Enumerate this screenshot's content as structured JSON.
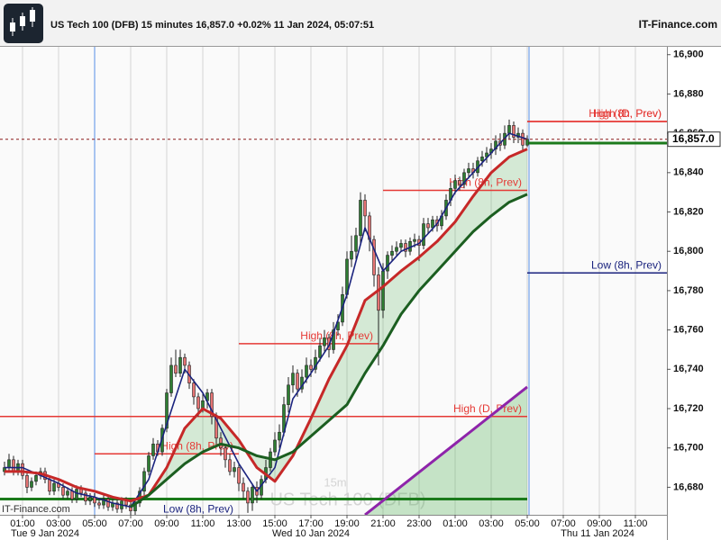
{
  "chart_data": {
    "type": "candlestick",
    "title": "US Tech 100 (DFB)",
    "subtitle": "15 minutes",
    "change": "+0.02%",
    "timestamp": "11 Jan 2024, 05:07:51",
    "brand": "IT-Finance.com",
    "watermark_period": "15m",
    "current_price": {
      "value": 16857,
      "label": "16,857.0"
    },
    "xlim": [
      -1,
      147
    ],
    "ylim": [
      16666,
      16904
    ],
    "yticks": [
      {
        "value": 16680,
        "label": "16,680"
      },
      {
        "value": 16700,
        "label": "16,700"
      },
      {
        "value": 16720,
        "label": "16,720"
      },
      {
        "value": 16740,
        "label": "16,740"
      },
      {
        "value": 16760,
        "label": "16,760"
      },
      {
        "value": 16780,
        "label": "16,780"
      },
      {
        "value": 16800,
        "label": "16,800"
      },
      {
        "value": 16820,
        "label": "16,820"
      },
      {
        "value": 16840,
        "label": "16,840"
      },
      {
        "value": 16860,
        "label": "16,860"
      },
      {
        "value": 16880,
        "label": "16,880"
      },
      {
        "value": 16900,
        "label": "16,900"
      }
    ],
    "xticks": [
      {
        "value": 4,
        "label": "01:00"
      },
      {
        "value": 12,
        "label": "03:00"
      },
      {
        "value": 20,
        "label": "05:00"
      },
      {
        "value": 28,
        "label": "07:00"
      },
      {
        "value": 36,
        "label": "09:00"
      },
      {
        "value": 44,
        "label": "11:00"
      },
      {
        "value": 52,
        "label": "13:00"
      },
      {
        "value": 60,
        "label": "15:00"
      },
      {
        "value": 68,
        "label": "17:00"
      },
      {
        "value": 76,
        "label": "19:00"
      },
      {
        "value": 84,
        "label": "21:00"
      },
      {
        "value": 92,
        "label": "23:00"
      },
      {
        "value": 100,
        "label": "01:00"
      },
      {
        "value": 108,
        "label": "03:00"
      },
      {
        "value": 116,
        "label": "05:00"
      },
      {
        "value": 124,
        "label": "07:00"
      },
      {
        "value": 132,
        "label": "09:00"
      },
      {
        "value": 140,
        "label": "11:00"
      }
    ],
    "date_labels": [
      "Tue 9 Jan 2024",
      "Wed 10 Jan 2024",
      "Thu 11 Jan 2024"
    ],
    "grid": true,
    "up_color": "#2e7d32",
    "down_color": "#e57373",
    "candles": {
      "open": [
        16688,
        16690,
        16694,
        16688,
        16692,
        16686,
        16680,
        16683,
        16686,
        16688,
        16684,
        16678,
        16682,
        16680,
        16676,
        16678,
        16674,
        16679,
        16677,
        16673,
        16675,
        16672,
        16671,
        16674,
        16670,
        16672,
        16669,
        16673,
        16671,
        16668,
        16672,
        16678,
        16688,
        16696,
        16702,
        16698,
        16710,
        16728,
        16742,
        16738,
        16746,
        16742,
        16733,
        16726,
        16720,
        16724,
        16728,
        16716,
        16705,
        16700,
        16694,
        16688,
        16690,
        16682,
        16678,
        16672,
        16680,
        16676,
        16684,
        16690,
        16698,
        16704,
        16708,
        16722,
        16732,
        16738,
        16730,
        16736,
        16742,
        16740,
        16746,
        16752,
        16756,
        16750,
        16760,
        16764,
        16778,
        16796,
        16800,
        16808,
        16826,
        16818,
        16806,
        16788,
        16770,
        16790,
        16798,
        16800,
        16802,
        16804,
        16800,
        16805,
        16806,
        16803,
        16814,
        16812,
        16816,
        16813,
        16818,
        16826,
        16832,
        16836,
        16834,
        16840,
        16842,
        16840,
        16846,
        16848,
        16850,
        16852,
        16856,
        16854,
        16860,
        16864,
        16858,
        16860,
        16854
      ],
      "high": [
        16693,
        16697,
        16696,
        16694,
        16694,
        16688,
        16685,
        16688,
        16690,
        16690,
        16686,
        16684,
        16684,
        16682,
        16680,
        16680,
        16681,
        16681,
        16679,
        16677,
        16677,
        16674,
        16676,
        16676,
        16674,
        16674,
        16675,
        16675,
        16673,
        16674,
        16680,
        16690,
        16698,
        16705,
        16704,
        16712,
        16730,
        16746,
        16750,
        16750,
        16748,
        16744,
        16735,
        16728,
        16728,
        16730,
        16730,
        16718,
        16708,
        16702,
        16697,
        16693,
        16692,
        16685,
        16680,
        16682,
        16683,
        16686,
        16694,
        16700,
        16708,
        16712,
        16726,
        16736,
        16742,
        16740,
        16740,
        16746,
        16745,
        16750,
        16756,
        16760,
        16758,
        16764,
        16768,
        16782,
        16800,
        16808,
        16812,
        16830,
        16829,
        16820,
        16808,
        16792,
        16794,
        16800,
        16803,
        16805,
        16806,
        16806,
        16807,
        16809,
        16808,
        16817,
        16817,
        16818,
        16818,
        16821,
        16829,
        16835,
        16839,
        16838,
        16842,
        16845,
        16845,
        16848,
        16851,
        16853,
        16855,
        16859,
        16860,
        16864,
        16867,
        16866,
        16863,
        16862,
        16859
      ],
      "low": [
        16686,
        16688,
        16686,
        16686,
        16684,
        16677,
        16678,
        16681,
        16684,
        16682,
        16676,
        16676,
        16678,
        16674,
        16674,
        16672,
        16672,
        16675,
        16671,
        16671,
        16670,
        16669,
        16669,
        16668,
        16668,
        16667,
        16667,
        16669,
        16666,
        16666,
        16670,
        16676,
        16686,
        16694,
        16696,
        16696,
        16708,
        16726,
        16736,
        16736,
        16738,
        16730,
        16722,
        16716,
        16718,
        16720,
        16712,
        16702,
        16696,
        16690,
        16686,
        16685,
        16678,
        16674,
        16667,
        16668,
        16672,
        16674,
        16682,
        16688,
        16696,
        16700,
        16706,
        16718,
        16728,
        16726,
        16728,
        16733,
        16736,
        16738,
        16744,
        16749,
        16746,
        16748,
        16757,
        16762,
        16776,
        16792,
        16796,
        16804,
        16810,
        16800,
        16782,
        16742,
        16766,
        16786,
        16795,
        16798,
        16800,
        16797,
        16798,
        16802,
        16795,
        16801,
        16809,
        16810,
        16810,
        16811,
        16816,
        16823,
        16829,
        16831,
        16832,
        16837,
        16837,
        16838,
        16843,
        16845,
        16847,
        16849,
        16851,
        16852,
        16857,
        16855,
        16855,
        16851,
        16853
      ],
      "close": [
        16690,
        16694,
        16688,
        16692,
        16686,
        16680,
        16683,
        16686,
        16688,
        16684,
        16678,
        16682,
        16680,
        16676,
        16678,
        16674,
        16679,
        16677,
        16673,
        16675,
        16672,
        16671,
        16674,
        16670,
        16672,
        16669,
        16673,
        16671,
        16668,
        16672,
        16678,
        16688,
        16696,
        16702,
        16698,
        16710,
        16728,
        16742,
        16738,
        16746,
        16742,
        16733,
        16726,
        16720,
        16724,
        16728,
        16716,
        16705,
        16700,
        16694,
        16688,
        16690,
        16682,
        16678,
        16672,
        16680,
        16676,
        16684,
        16690,
        16698,
        16704,
        16708,
        16722,
        16732,
        16738,
        16730,
        16736,
        16742,
        16740,
        16746,
        16752,
        16756,
        16750,
        16760,
        16764,
        16778,
        16796,
        16800,
        16808,
        16826,
        16818,
        16806,
        16788,
        16770,
        16790,
        16798,
        16800,
        16802,
        16804,
        16800,
        16805,
        16806,
        16803,
        16814,
        16812,
        16816,
        16813,
        16818,
        16826,
        16832,
        16836,
        16834,
        16840,
        16842,
        16840,
        16846,
        16848,
        16850,
        16852,
        16856,
        16854,
        16860,
        16864,
        16858,
        16860,
        16854,
        16857
      ]
    },
    "lines": [
      {
        "color": "#1a237e",
        "x": [
          0,
          4,
          8,
          12,
          16,
          20,
          24,
          28,
          32,
          36,
          40,
          44,
          48,
          52,
          56,
          60,
          64,
          68,
          72,
          76,
          80,
          84,
          88,
          92,
          96,
          100,
          104,
          108,
          112,
          116
        ],
        "values": [
          16690,
          16690,
          16686,
          16682,
          16677,
          16675,
          16672,
          16670,
          16684,
          16712,
          16740,
          16728,
          16710,
          16692,
          16678,
          16690,
          16725,
          16738,
          16752,
          16778,
          16812,
          16790,
          16800,
          16804,
          16814,
          16830,
          16840,
          16850,
          16860,
          16857
        ]
      },
      {
        "color": "#c62828",
        "x": [
          0,
          4,
          8,
          12,
          16,
          20,
          24,
          28,
          32,
          36,
          40,
          44,
          48,
          52,
          56,
          60,
          64,
          68,
          72,
          76,
          80,
          84,
          88,
          92,
          96,
          100,
          104,
          108,
          112,
          116
        ],
        "values": [
          16688,
          16688,
          16687,
          16684,
          16680,
          16678,
          16675,
          16673,
          16676,
          16690,
          16710,
          16720,
          16715,
          16704,
          16690,
          16683,
          16696,
          16715,
          16735,
          16752,
          16775,
          16782,
          16790,
          16797,
          16805,
          16815,
          16828,
          16840,
          16848,
          16852
        ]
      },
      {
        "color": "#1b5e20",
        "x": [
          0,
          4,
          8,
          12,
          16,
          20,
          24,
          28,
          32,
          36,
          40,
          44,
          48,
          52,
          56,
          60,
          64,
          68,
          72,
          76,
          80,
          84,
          88,
          92,
          96,
          100,
          104,
          108,
          112,
          116
        ],
        "values": [
          null,
          null,
          null,
          null,
          null,
          null,
          null,
          16670,
          16676,
          16684,
          16692,
          16698,
          16702,
          16700,
          16696,
          16694,
          16698,
          16706,
          16714,
          16722,
          16738,
          16752,
          16768,
          16780,
          16790,
          16800,
          16810,
          16818,
          16825,
          16829
        ]
      },
      {
        "color": "#8e24aa",
        "x": [
          80,
          116
        ],
        "values": [
          16666,
          16731
        ]
      }
    ],
    "levels": [
      {
        "label": "High (D, Prev)",
        "value": 16866,
        "color": "#e53935",
        "x": [
          116,
          147
        ]
      },
      {
        "label": "High (8h, Prev)",
        "value": 16866,
        "color": "#e53935",
        "x": [
          116,
          147
        ]
      },
      {
        "label": "Low (8h, Prev)",
        "value": 16789,
        "color": "#1a237e",
        "x": [
          116,
          147
        ]
      },
      {
        "value": 16855,
        "color": "#1b7a1b",
        "x": [
          116,
          147
        ]
      },
      {
        "label": "High (8h, Prev)",
        "value": 16831,
        "color": "#e53935",
        "x": [
          84,
          116
        ]
      },
      {
        "label": "High (8h, Prev)",
        "value": 16753,
        "color": "#e53935",
        "x": [
          52,
          83
        ]
      },
      {
        "label": "High (D, Prev)",
        "value": 16716,
        "color": "#e53935",
        "x": [
          -1,
          116
        ]
      },
      {
        "label": "High (8h, Prev)",
        "value": 16697,
        "color": "#e53935",
        "x": [
          20,
          52
        ]
      },
      {
        "value": 16674,
        "color": "#1b7a1b",
        "x": [
          -1,
          116
        ]
      },
      {
        "label": "Low (8h, Prev)",
        "value": 16665,
        "color": "#1a237e",
        "x": [
          20,
          52
        ]
      }
    ]
  }
}
